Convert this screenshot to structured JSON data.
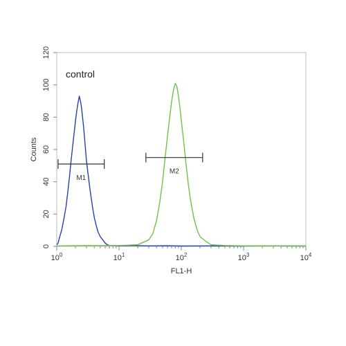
{
  "chart_data": {
    "type": "line",
    "annotation": "control",
    "xlabel": "FL1-H",
    "ylabel": "Counts",
    "x_scale": "log",
    "xlim": [
      1,
      10000
    ],
    "ylim": [
      0,
      120
    ],
    "grid": false,
    "x_ticks": [
      {
        "value": 1,
        "base": "10",
        "exp": "0"
      },
      {
        "value": 10,
        "base": "10",
        "exp": "1"
      },
      {
        "value": 100,
        "base": "10",
        "exp": "2"
      },
      {
        "value": 1000,
        "base": "10",
        "exp": "3"
      },
      {
        "value": 10000,
        "base": "10",
        "exp": "4"
      }
    ],
    "y_ticks": [
      "0",
      "20",
      "40",
      "60",
      "80",
      "100",
      "120"
    ],
    "markers": [
      {
        "label": "M1",
        "x_start": 1.05,
        "x_end": 5.8,
        "y": 51
      },
      {
        "label": "M2",
        "x_start": 27,
        "x_end": 220,
        "y": 55
      }
    ],
    "series": [
      {
        "color": "#2b3fa8",
        "x": [
          1,
          1.05,
          1.1,
          1.2,
          1.3,
          1.4,
          1.5,
          1.6,
          1.7,
          1.8,
          1.9,
          2.0,
          2.1,
          2.2,
          2.3,
          2.4,
          2.5,
          2.6,
          2.7,
          2.8,
          2.9,
          3.0,
          3.2,
          3.4,
          3.6,
          3.8,
          4.0,
          4.3,
          4.6,
          5.0,
          5.5,
          6.0,
          6.5,
          7.0,
          8,
          10,
          15,
          30,
          60,
          100,
          300,
          1000,
          3000,
          10000
        ],
        "values": [
          1,
          2,
          5,
          10,
          17,
          24,
          33,
          43,
          53,
          62,
          70,
          78,
          84,
          89,
          93,
          90,
          86,
          80,
          74,
          67,
          60,
          53,
          44,
          36,
          29,
          23,
          18,
          13,
          9,
          6,
          4,
          2,
          1,
          0.5,
          0.5,
          0.3,
          0.5,
          0.3,
          0.4,
          0.2,
          0.3,
          0.2,
          0.3,
          0.2
        ]
      },
      {
        "color": "#6cc24a",
        "x": [
          1,
          3,
          10,
          20,
          30,
          35,
          40,
          45,
          50,
          55,
          60,
          65,
          70,
          75,
          80,
          85,
          90,
          95,
          100,
          110,
          120,
          130,
          140,
          160,
          180,
          200,
          250,
          300,
          500,
          1000,
          3000,
          10000
        ],
        "values": [
          0.3,
          0.5,
          0.5,
          1,
          4,
          8,
          16,
          27,
          40,
          55,
          68,
          80,
          90,
          97,
          101,
          99,
          93,
          86,
          78,
          64,
          50,
          38,
          29,
          17,
          10,
          6,
          3,
          1,
          0.5,
          0.3,
          0.3,
          0.2
        ]
      }
    ]
  }
}
